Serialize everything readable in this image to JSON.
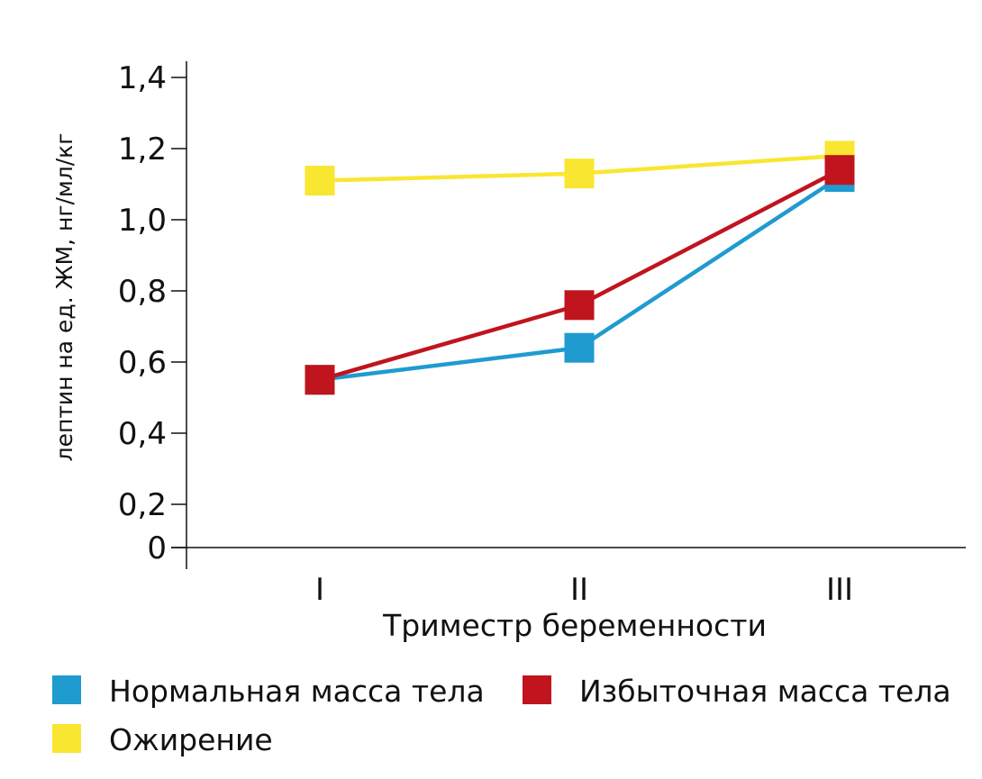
{
  "chart_data": {
    "type": "line",
    "title": "",
    "xlabel": "Триместр беременности",
    "ylabel": "лептин на ед. ЖМ, нг/мл/кг",
    "categories": [
      "I",
      "II",
      "III"
    ],
    "y_ticks": [
      0,
      0.2,
      0.4,
      0.6,
      0.8,
      1.0,
      1.2,
      1.4
    ],
    "y_tick_labels": [
      "0",
      "0,2",
      "0,4",
      "0,6",
      "0,8",
      "1,0",
      "1,2",
      "1,4"
    ],
    "ylim": [
      0,
      1.4
    ],
    "grid": false,
    "legend_position": "bottom",
    "series": [
      {
        "name": "Ожирение",
        "color": "#F9E631",
        "values": [
          1.11,
          1.13,
          1.18
        ]
      },
      {
        "name": "Нормальная масса тела",
        "color": "#1F9BD0",
        "values": [
          0.55,
          0.64,
          1.12
        ]
      },
      {
        "name": "Избыточная масса тела",
        "color": "#C0141E",
        "values": [
          0.55,
          0.76,
          1.14
        ]
      }
    ]
  }
}
